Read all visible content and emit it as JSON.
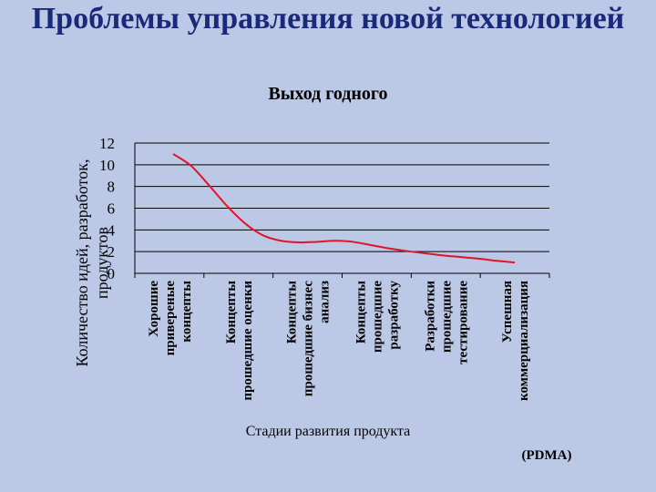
{
  "page": {
    "title": "Проблемы управления новой технологией",
    "source": "(PDMA)"
  },
  "colors": {
    "background": "#bcc9e6",
    "title": "#1a2a7a",
    "line": "#e0142a",
    "grid": "#000000"
  },
  "chart_data": {
    "type": "line",
    "title": "Выход годного",
    "xlabel": "Стадии развития продукта",
    "ylabel": [
      "Количество идей, разработок,",
      "продуктов"
    ],
    "ylim": [
      0,
      12
    ],
    "yticks": [
      0,
      2,
      4,
      6,
      8,
      10,
      12
    ],
    "grid": true,
    "categories": [
      [
        "Хорошие",
        "привереные",
        "концепты"
      ],
      [
        "Концепты",
        "прошедшие оценки"
      ],
      [
        "Концепты",
        "прошедшие бизнес",
        "анализ"
      ],
      [
        "Концепты",
        "прошедшие",
        "разработку"
      ],
      [
        "Разработки",
        "прошедшие",
        "тестирование"
      ],
      [
        "Успешная",
        "коммерциализация"
      ]
    ],
    "series": [
      {
        "x": [
          0,
          0.3,
          0.6,
          0.9,
          1.2,
          1.5,
          1.8,
          2.1,
          2.4,
          2.7,
          3.0,
          3.3,
          3.6,
          3.9,
          4.2,
          4.5,
          4.8,
          5.1,
          5.4,
          5.7
        ],
        "values": [
          11,
          9.9,
          8.1,
          6.2,
          4.6,
          3.5,
          3.0,
          2.85,
          2.9,
          3.0,
          2.9,
          2.6,
          2.3,
          2.05,
          1.85,
          1.65,
          1.5,
          1.35,
          1.15,
          1.0
        ]
      }
    ]
  }
}
